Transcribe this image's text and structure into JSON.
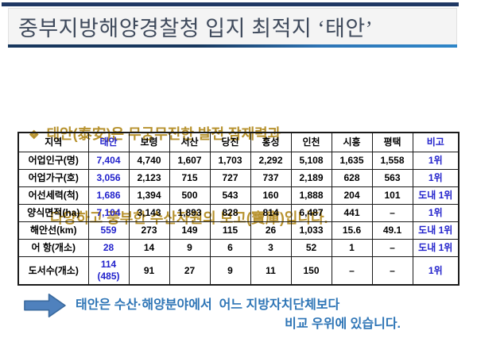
{
  "slide": {
    "title": "중부지방해양경찰청 입지 최적지 ‘태안’",
    "bullet": {
      "marker": "❖",
      "line1": "태안(泰安)은 무궁무진한 발전 잠재력과",
      "line2": "다양하고 풍부한 수산자원의 보고(寶庫)입니다."
    },
    "conclusion": {
      "arrow_icon": "right-block-arrow",
      "line1": "태안은 수산·해양분야에서  어느 지방자치단체보다",
      "line2": "비교 우위에 있습니다."
    }
  },
  "table": {
    "headers": [
      "지역",
      "태안",
      "보령",
      "서산",
      "당진",
      "홍성",
      "인천",
      "시흥",
      "평택",
      "비고"
    ],
    "rows": [
      {
        "label": "어업인구(명)",
        "values": [
          "7,404",
          "4,740",
          "1,607",
          "1,703",
          "2,292",
          "5,108",
          "1,635",
          "1,558"
        ],
        "remark": "1위"
      },
      {
        "label": "어업가구(호)",
        "values": [
          "3,056",
          "2,123",
          "715",
          "727",
          "737",
          "2,189",
          "628",
          "563"
        ],
        "remark": "1위"
      },
      {
        "label": "어선세력(척)",
        "values": [
          "1,686",
          "1,394",
          "500",
          "543",
          "160",
          "1,888",
          "204",
          "101"
        ],
        "remark": "도내 1위"
      },
      {
        "label": "양식면적(ha)",
        "values": [
          "7,104",
          "3,143",
          "1,893",
          "828",
          "814",
          "6,487",
          "441",
          "–"
        ],
        "remark": "1위"
      },
      {
        "label": "해안선(km)",
        "values": [
          "559",
          "273",
          "149",
          "115",
          "26",
          "1,033",
          "15.6",
          "49.1"
        ],
        "remark": "도내 1위"
      },
      {
        "label": "어  항(개소)",
        "values": [
          "28",
          "14",
          "9",
          "6",
          "3",
          "52",
          "1",
          "–"
        ],
        "remark": "도내 1위"
      },
      {
        "label": "도서수(개소)",
        "values": [
          "114\n(485)",
          "91",
          "27",
          "9",
          "11",
          "150",
          "–",
          "–"
        ],
        "remark": "1위"
      }
    ]
  },
  "colors": {
    "top_bar": "#1F3864",
    "title_text": "#3F4A5C",
    "underline_left": "#17375D",
    "underline_right": "#2E86C8",
    "bullet_text": "#B7922E",
    "table_highlight": "#2222CC",
    "conclusion_text": "#2E75B6",
    "arrow_fill": "#4F81BD",
    "arrow_stroke": "#3A6A9E"
  }
}
